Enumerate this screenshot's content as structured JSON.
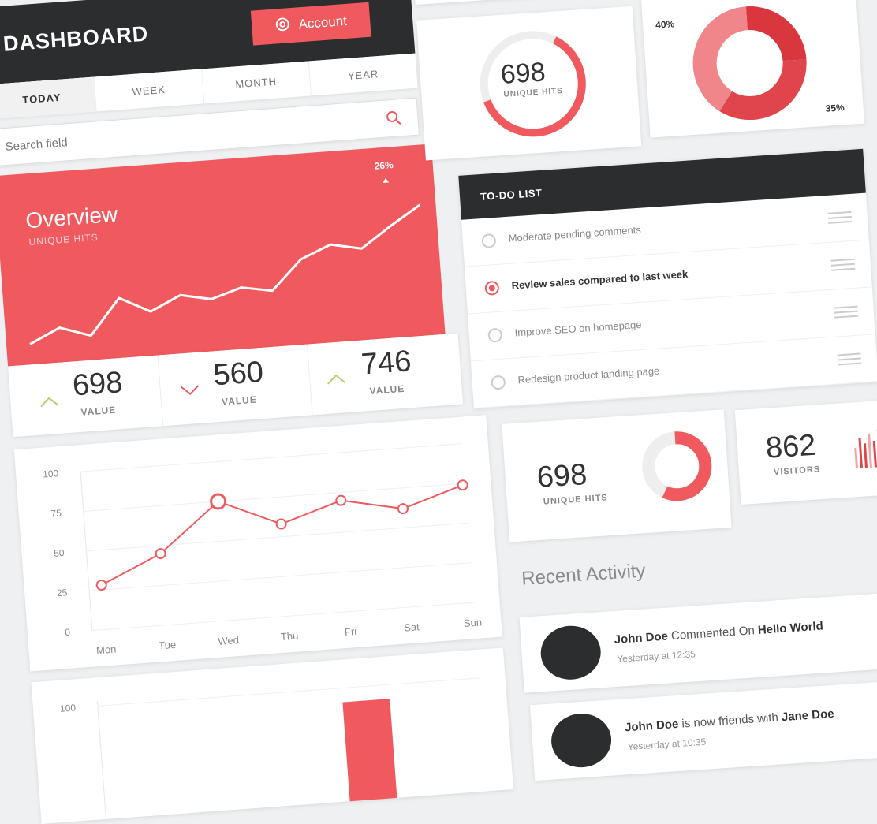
{
  "header": {
    "title": "DASHBOARD",
    "account_label": "Account"
  },
  "tabs": [
    {
      "label": "TODAY",
      "active": true
    },
    {
      "label": "WEEK",
      "active": false
    },
    {
      "label": "MONTH",
      "active": false
    },
    {
      "label": "YEAR",
      "active": false
    }
  ],
  "search": {
    "placeholder": "Search field"
  },
  "overview": {
    "title": "Overview",
    "subtitle": "UNIQUE HITS",
    "change": "26%",
    "sparkline": [
      10,
      28,
      15,
      60,
      40,
      58,
      50,
      62,
      55,
      92,
      108,
      100,
      126,
      150
    ]
  },
  "stats": [
    {
      "value": "698",
      "label": "VALUE",
      "trend": "up"
    },
    {
      "value": "560",
      "label": "VALUE",
      "trend": "down"
    },
    {
      "value": "746",
      "label": "VALUE",
      "trend": "up"
    }
  ],
  "chart_data": [
    {
      "type": "line",
      "categories": [
        "Mon",
        "Tue",
        "Wed",
        "Thu",
        "Fri",
        "Sat",
        "Sun"
      ],
      "values": [
        28,
        45,
        75,
        58,
        70,
        62,
        74
      ],
      "yticks": [
        0,
        25,
        50,
        75,
        100
      ],
      "ylim": [
        0,
        100
      ],
      "highlight_index": 2
    },
    {
      "type": "bar",
      "yticks": [
        100
      ],
      "ylim": [
        0,
        100
      ]
    }
  ],
  "donut_top": {
    "value": "698",
    "label": "UNIQUE HITS",
    "fraction": 0.62
  },
  "pie": {
    "slices": [
      {
        "label": "25%",
        "value": 25,
        "color": "#d9363e"
      },
      {
        "label": "35%",
        "value": 35,
        "color": "#e0454b"
      },
      {
        "label": "40%",
        "value": 40,
        "color": "#f0868a"
      }
    ]
  },
  "todo": {
    "title": "TO-DO LIST",
    "items": [
      {
        "text": "Moderate pending comments",
        "checked": false
      },
      {
        "text": "Review sales compared to last week",
        "checked": true
      },
      {
        "text": "Improve SEO on homepage",
        "checked": false
      },
      {
        "text": "Redesign product landing page",
        "checked": false
      }
    ]
  },
  "hits_card": {
    "value": "698",
    "label": "UNIQUE HITS",
    "fraction": 0.58
  },
  "visitors": {
    "value": "862",
    "label": "VISITORS",
    "bars": [
      0.55,
      0.8,
      0.65,
      0.9,
      0.7,
      1.0,
      0.6,
      0.85,
      0.75,
      0.95,
      0.65,
      0.8,
      0.7,
      0.9
    ]
  },
  "activity": {
    "title": "Recent Activity",
    "items": [
      {
        "actor": "John Doe",
        "action": " Commented On ",
        "target": "Hello World",
        "time": "Yesterday at 12:35"
      },
      {
        "actor": "John Doe",
        "action": " is now friends with ",
        "target": "Jane Doe",
        "time": "Yesterday at 10:35"
      }
    ]
  },
  "colors": {
    "accent": "#f05a5f",
    "accent_dark": "#e0454b",
    "dark": "#2b2d2f",
    "light_ring": "#eeeeee"
  }
}
